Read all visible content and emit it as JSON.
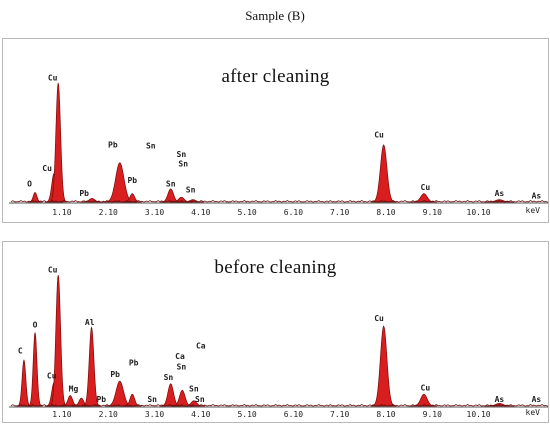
{
  "caption": "Sample (B)",
  "chart_data": [
    {
      "type": "line",
      "title": "after cleaning",
      "xlabel": "keV",
      "x_ticks": [
        "1.10",
        "2.10",
        "3.10",
        "4.10",
        "5.10",
        "6.10",
        "7.10",
        "8.10",
        "9.10",
        "10.10"
      ],
      "xlim": [
        0.0,
        11.6
      ],
      "ylim": [
        0,
        100
      ],
      "fill_color": "#d81e1e",
      "peaks": [
        {
          "x": 0.52,
          "y": 8,
          "w": 0.04
        },
        {
          "x": 0.93,
          "y": 24,
          "w": 0.05
        },
        {
          "x": 1.02,
          "y": 100,
          "w": 0.05
        },
        {
          "x": 1.75,
          "y": 3,
          "w": 0.06
        },
        {
          "x": 2.35,
          "y": 33,
          "w": 0.09
        },
        {
          "x": 2.62,
          "y": 7,
          "w": 0.05
        },
        {
          "x": 3.45,
          "y": 11,
          "w": 0.06
        },
        {
          "x": 3.68,
          "y": 4,
          "w": 0.06
        },
        {
          "x": 3.93,
          "y": 2,
          "w": 0.06
        },
        {
          "x": 8.05,
          "y": 48,
          "w": 0.07
        },
        {
          "x": 8.92,
          "y": 7,
          "w": 0.07
        },
        {
          "x": 10.55,
          "y": 2,
          "w": 0.08
        }
      ],
      "labels": [
        {
          "text": "O",
          "x": 0.4,
          "y": 13
        },
        {
          "text": "Cu",
          "x": 0.78,
          "y": 26
        },
        {
          "text": "Cu",
          "x": 0.9,
          "y": 102
        },
        {
          "text": "Pb",
          "x": 1.58,
          "y": 5
        },
        {
          "text": "Pb",
          "x": 2.2,
          "y": 46
        },
        {
          "text": "Pb",
          "x": 2.62,
          "y": 16
        },
        {
          "text": "Sn",
          "x": 3.02,
          "y": 45
        },
        {
          "text": "Sn",
          "x": 3.45,
          "y": 13
        },
        {
          "text": "Sn",
          "x": 3.68,
          "y": 38
        },
        {
          "text": "Sn",
          "x": 3.72,
          "y": 30
        },
        {
          "text": "Sn",
          "x": 3.88,
          "y": 8
        },
        {
          "text": "Cu",
          "x": 7.95,
          "y": 54
        },
        {
          "text": "Cu",
          "x": 8.95,
          "y": 10
        },
        {
          "text": "As",
          "x": 10.55,
          "y": 5
        },
        {
          "text": "As",
          "x": 11.35,
          "y": 3
        }
      ]
    },
    {
      "type": "line",
      "title": "before cleaning",
      "xlabel": "keV",
      "x_ticks": [
        "1.10",
        "2.10",
        "3.10",
        "4.10",
        "5.10",
        "6.10",
        "7.10",
        "8.10",
        "9.10",
        "10.10"
      ],
      "xlim": [
        0.0,
        11.6
      ],
      "ylim": [
        0,
        100
      ],
      "fill_color": "#d81e1e",
      "peaks": [
        {
          "x": 0.28,
          "y": 35,
          "w": 0.04
        },
        {
          "x": 0.52,
          "y": 56,
          "w": 0.04
        },
        {
          "x": 0.93,
          "y": 18,
          "w": 0.05
        },
        {
          "x": 1.02,
          "y": 100,
          "w": 0.05
        },
        {
          "x": 1.28,
          "y": 8,
          "w": 0.05
        },
        {
          "x": 1.52,
          "y": 6,
          "w": 0.05
        },
        {
          "x": 1.74,
          "y": 60,
          "w": 0.05
        },
        {
          "x": 2.35,
          "y": 19,
          "w": 0.08
        },
        {
          "x": 2.62,
          "y": 9,
          "w": 0.05
        },
        {
          "x": 3.45,
          "y": 17,
          "w": 0.06
        },
        {
          "x": 3.7,
          "y": 12,
          "w": 0.06
        },
        {
          "x": 3.95,
          "y": 4,
          "w": 0.06
        },
        {
          "x": 8.05,
          "y": 61,
          "w": 0.07
        },
        {
          "x": 8.92,
          "y": 9,
          "w": 0.07
        },
        {
          "x": 10.55,
          "y": 2,
          "w": 0.08
        }
      ],
      "labels": [
        {
          "text": "C",
          "x": 0.2,
          "y": 40
        },
        {
          "text": "O",
          "x": 0.52,
          "y": 60
        },
        {
          "text": "Cu",
          "x": 0.88,
          "y": 21
        },
        {
          "text": "Cu",
          "x": 0.9,
          "y": 102
        },
        {
          "text": "Al",
          "x": 1.7,
          "y": 62
        },
        {
          "text": "Mg",
          "x": 1.35,
          "y": 11
        },
        {
          "text": "Pb",
          "x": 1.95,
          "y": 3
        },
        {
          "text": "Pb",
          "x": 2.25,
          "y": 22
        },
        {
          "text": "Pb",
          "x": 2.65,
          "y": 31
        },
        {
          "text": "Sn",
          "x": 3.05,
          "y": 3
        },
        {
          "text": "Sn",
          "x": 3.4,
          "y": 20
        },
        {
          "text": "Ca",
          "x": 3.65,
          "y": 36
        },
        {
          "text": "Sn",
          "x": 3.68,
          "y": 28
        },
        {
          "text": "Ca",
          "x": 4.1,
          "y": 44
        },
        {
          "text": "Sn",
          "x": 3.95,
          "y": 11
        },
        {
          "text": "Sn",
          "x": 4.08,
          "y": 3
        },
        {
          "text": "Cu",
          "x": 7.95,
          "y": 65
        },
        {
          "text": "Cu",
          "x": 8.95,
          "y": 12
        },
        {
          "text": "As",
          "x": 10.55,
          "y": 3
        },
        {
          "text": "As",
          "x": 11.35,
          "y": 3
        }
      ]
    }
  ]
}
